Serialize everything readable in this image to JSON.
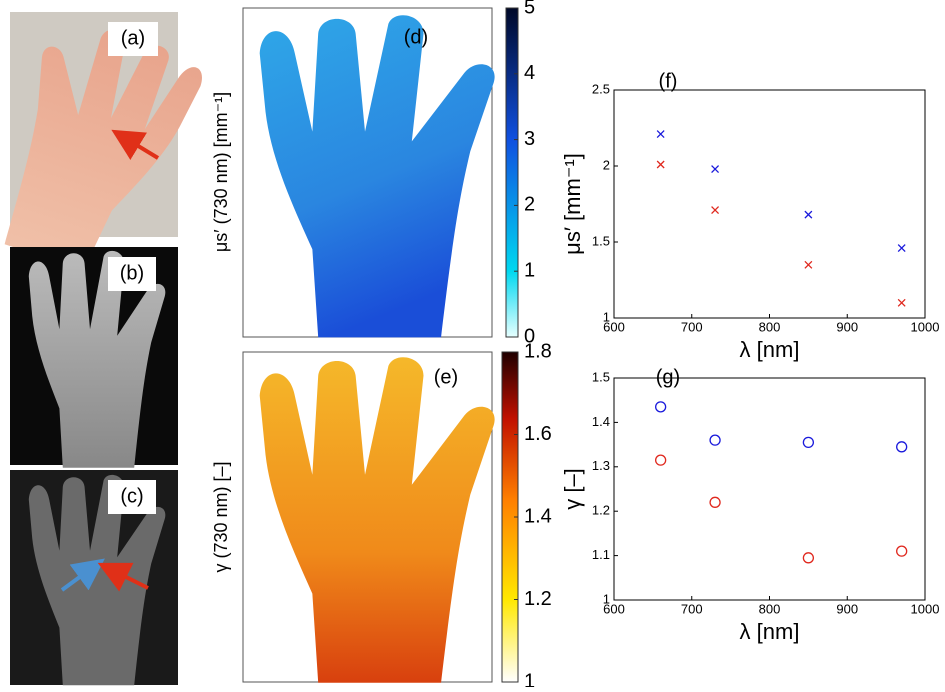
{
  "panel_labels": [
    "(a)",
    "(b)",
    "(c)"
  ],
  "image_maps": [
    {
      "label": "(d)",
      "ylabel": "μs′ (730 nm) [mm⁻¹]",
      "colorbar_lim": [
        0,
        5
      ],
      "colorbar_ticks": [
        0,
        1,
        2,
        3,
        4,
        5
      ]
    },
    {
      "label": "(e)",
      "ylabel": "γ (730 nm) [–]",
      "colorbar_lim": [
        1,
        1.8
      ],
      "colorbar_ticks": [
        1,
        1.2,
        1.4,
        1.6,
        1.8
      ]
    }
  ],
  "chart_data": [
    {
      "type": "scatter",
      "panel_label": "(f)",
      "x_label": "λ [nm]",
      "y_label": "μs′ [mm⁻¹]",
      "x": [
        660,
        730,
        850,
        970
      ],
      "series": [
        {
          "color": "#1a1adc",
          "marker": "x",
          "values": [
            2.21,
            1.98,
            1.68,
            1.46
          ]
        },
        {
          "color": "#e0281e",
          "marker": "x",
          "values": [
            2.01,
            1.71,
            1.35,
            1.1
          ]
        }
      ],
      "xlim": [
        600,
        1000
      ],
      "xticks": [
        600,
        700,
        800,
        900,
        1000
      ],
      "ylim": [
        1,
        2.5
      ],
      "yticks": [
        1,
        1.5,
        2,
        2.5
      ]
    },
    {
      "type": "scatter",
      "panel_label": "(g)",
      "x_label": "λ [nm]",
      "y_label": "γ [–]",
      "x": [
        660,
        730,
        850,
        970
      ],
      "series": [
        {
          "color": "#1a1adc",
          "marker": "o",
          "values": [
            1.435,
            1.36,
            1.355,
            1.345
          ]
        },
        {
          "color": "#e0281e",
          "marker": "o",
          "values": [
            1.315,
            1.22,
            1.095,
            1.11
          ]
        }
      ],
      "xlim": [
        600,
        1000
      ],
      "xticks": [
        600,
        700,
        800,
        900,
        1000
      ],
      "ylim": [
        1,
        1.5
      ],
      "yticks": [
        1,
        1.1,
        1.2,
        1.3,
        1.4,
        1.5
      ]
    }
  ]
}
